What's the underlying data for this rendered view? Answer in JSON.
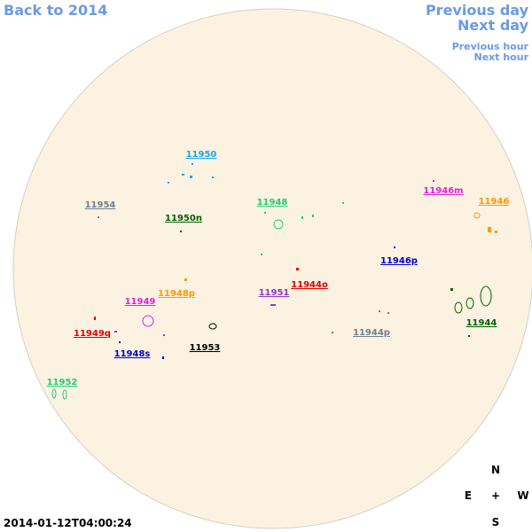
{
  "nav": {
    "back": "Back to 2014",
    "previous_day": "Previous day",
    "next_day": "Next day",
    "previous_hour": "Previous hour",
    "next_hour": "Next hour"
  },
  "regions": [
    {
      "label": "11950",
      "color": "#11aaee"
    },
    {
      "label": "11954",
      "color": "#708090"
    },
    {
      "label": "11950n",
      "color": "#006400"
    },
    {
      "label": "11948",
      "color": "#22cc77"
    },
    {
      "label": "11946m",
      "color": "#dd22dd"
    },
    {
      "label": "11946",
      "color": "#ff9900"
    },
    {
      "label": "11946p",
      "color": "#0000cc"
    },
    {
      "label": "11944o",
      "color": "#dd0000"
    },
    {
      "label": "11951",
      "color": "#9933cc"
    },
    {
      "label": "11948p",
      "color": "#ff9900"
    },
    {
      "label": "11949",
      "color": "#dd22dd"
    },
    {
      "label": "11949q",
      "color": "#dd0000"
    },
    {
      "label": "11948s",
      "color": "#0000cc"
    },
    {
      "label": "11953",
      "color": "#000000"
    },
    {
      "label": "11944p",
      "color": "#708090"
    },
    {
      "label": "11944",
      "color": "#006400"
    },
    {
      "label": "11952",
      "color": "#22cc77"
    }
  ],
  "compass": {
    "north": "N",
    "east": "E",
    "center": "+",
    "west": "W",
    "south": "S"
  },
  "timestamp": "2014-01-12T04:00:24"
}
